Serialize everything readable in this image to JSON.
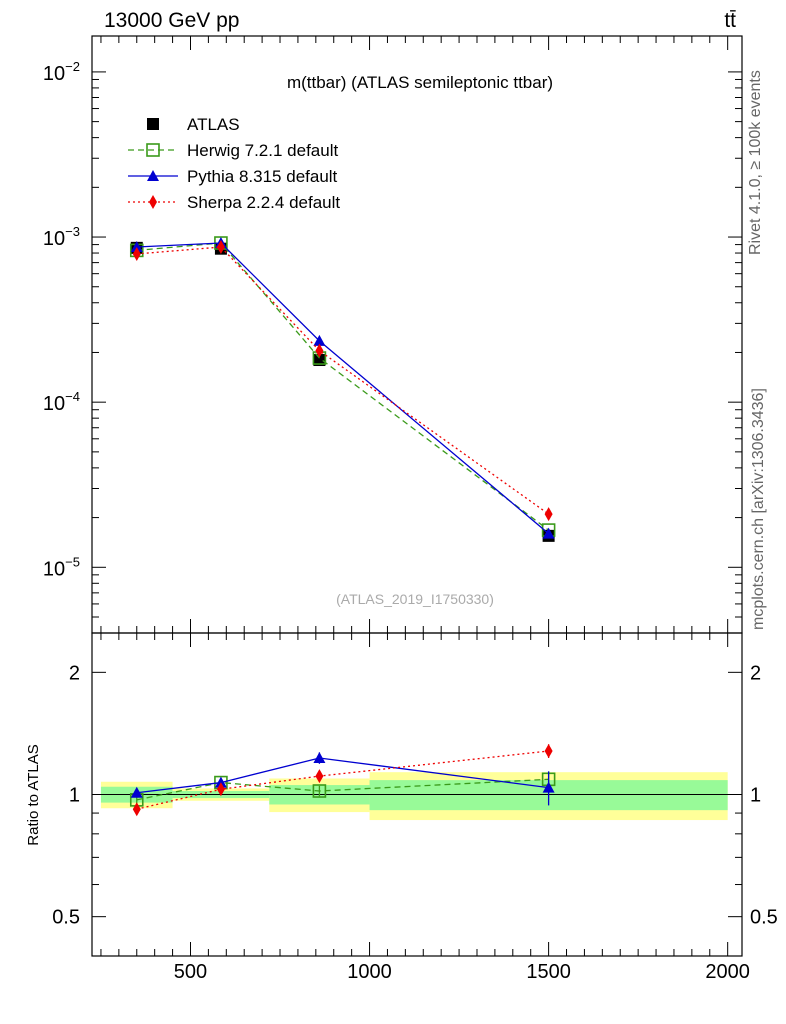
{
  "header": {
    "energy_label": "13000 GeV pp",
    "process_label": "tt̄"
  },
  "side_labels": {
    "rivet": "Rivet 4.1.0, ≥ 100k events",
    "mcplots": "mcplots.cern.ch [arXiv:1306.3436]"
  },
  "colors": {
    "atlas": "#000000",
    "herwig": "#3a9a1a",
    "pythia": "#0000d0",
    "sherpa": "#ee0000",
    "band_inner": "#98fa98",
    "band_outer": "#ffff99"
  },
  "chart_data": [
    {
      "type": "line",
      "title": "m(ttbar) (ATLAS semileptonic ttbar)",
      "watermark": "(ATLAS_2019_I1750330)",
      "xlabel": "",
      "ylabel": "",
      "yscale": "log",
      "xlim": [
        225,
        2040
      ],
      "ylim": [
        4e-06,
        0.0165
      ],
      "y_ticks": [
        {
          "value": 1e-05,
          "base": "10",
          "exp": "−5"
        },
        {
          "value": 0.0001,
          "base": "10",
          "exp": "−4"
        },
        {
          "value": 0.001,
          "base": "10",
          "exp": "−3"
        },
        {
          "value": 0.01,
          "base": "10",
          "exp": "−2"
        }
      ],
      "x_ticks": [
        500,
        1000,
        1500,
        2000
      ],
      "x_tick_labels": [
        "500",
        "1000",
        "1500",
        "2000"
      ],
      "x": [
        350,
        585,
        860,
        1500
      ],
      "series": [
        {
          "key": "atlas",
          "name": "ATLAS",
          "marker": "square",
          "line": "none",
          "values": [
            0.00086,
            0.00085,
            0.00018,
            1.55e-05
          ]
        },
        {
          "key": "herwig",
          "name": "Herwig 7.2.1 default",
          "marker": "open-square",
          "line": "dashed",
          "values": [
            0.00083,
            0.00092,
            0.000185,
            1.68e-05
          ]
        },
        {
          "key": "pythia",
          "name": "Pythia 8.315 default",
          "marker": "triangle",
          "line": "solid",
          "values": [
            0.00087,
            0.00092,
            0.000235,
            1.6e-05
          ]
        },
        {
          "key": "sherpa",
          "name": "Sherpa 2.2.4 default",
          "marker": "diamond",
          "line": "dotted",
          "values": [
            0.00079,
            0.00087,
            0.000205,
            2.1e-05
          ]
        }
      ]
    },
    {
      "type": "line",
      "ylabel": "Ratio to ATLAS",
      "xlim": [
        225,
        2040
      ],
      "ylim": [
        0.4,
        2.5
      ],
      "y_ticks": [
        0.5,
        1,
        2
      ],
      "y_tick_labels": [
        "0.5",
        "1",
        "2"
      ],
      "x": [
        350,
        585,
        860,
        1500
      ],
      "bands": [
        {
          "x_range": [
            250,
            450
          ],
          "inner": [
            0.955,
            1.045
          ],
          "outer": [
            0.925,
            1.075
          ]
        },
        {
          "x_range": [
            450,
            720
          ],
          "inner": [
            0.98,
            1.02
          ],
          "outer": [
            0.965,
            1.035
          ]
        },
        {
          "x_range": [
            720,
            1000
          ],
          "inner": [
            0.945,
            1.055
          ],
          "outer": [
            0.905,
            1.095
          ]
        },
        {
          "x_range": [
            1000,
            2000
          ],
          "inner": [
            0.915,
            1.085
          ],
          "outer": [
            0.865,
            1.135
          ]
        }
      ],
      "series": [
        {
          "key": "herwig",
          "name": "Herwig 7.2.1 default",
          "values": [
            0.97,
            1.07,
            1.02,
            1.09
          ],
          "errors": [
            0.02,
            0.02,
            0.03,
            0.05
          ]
        },
        {
          "key": "pythia",
          "name": "Pythia 8.315 default",
          "values": [
            1.01,
            1.07,
            1.23,
            1.04
          ],
          "errors": [
            0.02,
            0.02,
            0.04,
            0.1
          ]
        },
        {
          "key": "sherpa",
          "name": "Sherpa 2.2.4 default",
          "values": [
            0.92,
            1.03,
            1.11,
            1.28
          ],
          "errors": [
            0.01,
            0.01,
            0.03,
            0.05
          ]
        }
      ]
    }
  ]
}
